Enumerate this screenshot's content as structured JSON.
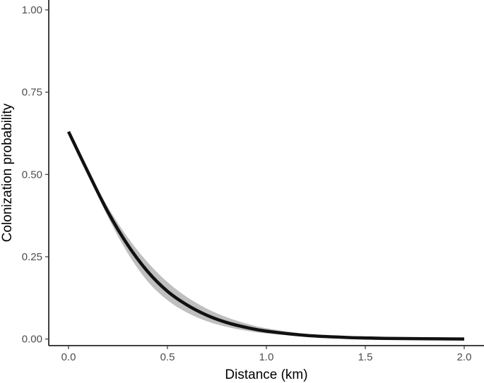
{
  "chart_data": {
    "type": "line",
    "title": "",
    "xlabel": "Distance (km)",
    "ylabel": "Colonization probability",
    "xlim": [
      -0.1,
      2.1
    ],
    "ylim": [
      -0.02,
      1.03
    ],
    "x_ticks": [
      "0.0",
      "0.5",
      "1.0",
      "1.5",
      "2.0"
    ],
    "y_ticks": [
      "0.00",
      "0.25",
      "0.50",
      "0.75",
      "1.00"
    ],
    "grid": false,
    "legend": "none",
    "series": [
      {
        "x": [
          0.0,
          0.1,
          0.2,
          0.3,
          0.4,
          0.5,
          0.6,
          0.7,
          0.8,
          0.9,
          1.0,
          1.2,
          1.4,
          1.6,
          1.8,
          2.0
        ],
        "y": [
          0.63,
          0.505,
          0.385,
          0.285,
          0.205,
          0.145,
          0.103,
          0.072,
          0.05,
          0.035,
          0.024,
          0.011,
          0.005,
          0.002,
          0.001,
          0.0
        ],
        "lower": [
          0.63,
          0.5,
          0.37,
          0.26,
          0.175,
          0.118,
          0.08,
          0.054,
          0.037,
          0.025,
          0.017,
          0.008,
          0.004,
          0.002,
          0.001,
          0.0
        ],
        "upper": [
          0.63,
          0.51,
          0.4,
          0.308,
          0.233,
          0.173,
          0.127,
          0.092,
          0.066,
          0.047,
          0.033,
          0.016,
          0.007,
          0.003,
          0.001,
          0.0
        ]
      }
    ],
    "colors": {
      "line": "#111111",
      "ribbon": "#bfbfbf",
      "axis": "#000000",
      "tick_text": "#4d4d4d"
    }
  }
}
